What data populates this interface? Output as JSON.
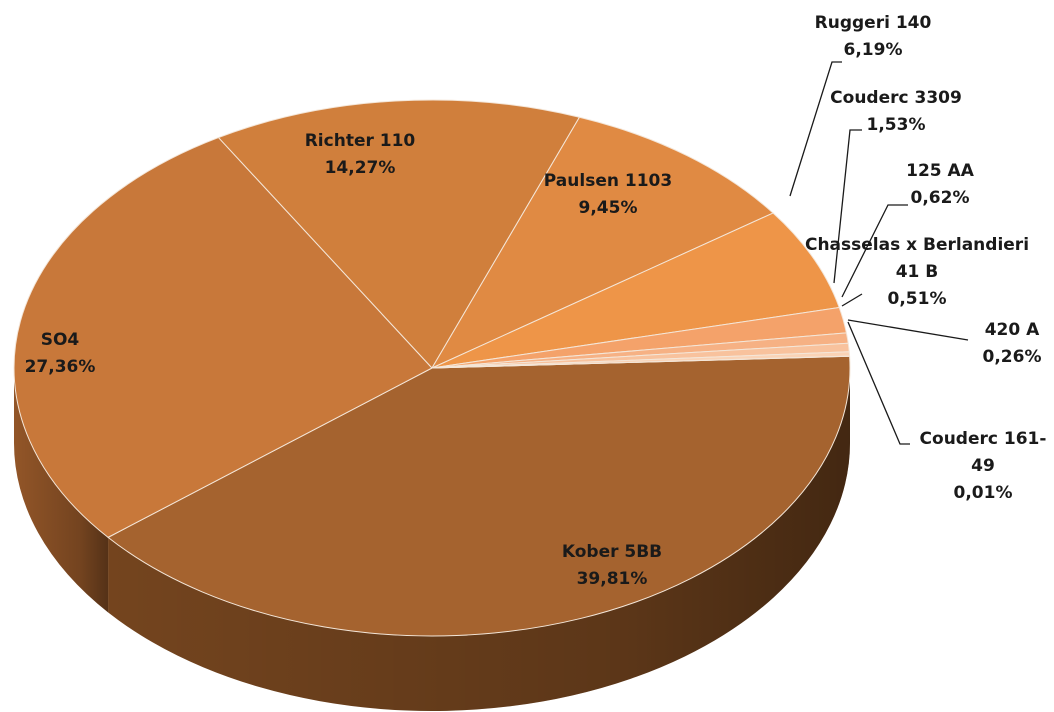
{
  "chart_data": {
    "type": "pie",
    "style": "3d",
    "categories": [
      "Kober 5BB",
      "SO4",
      "Richter 110",
      "Paulsen 1103",
      "Ruggeri 140",
      "Couderc 3309",
      "125 AA",
      "Chasselas x Berlandieri 41 B",
      "420 A",
      "Couderc 161-49"
    ],
    "values": [
      39.81,
      27.36,
      14.27,
      9.45,
      6.19,
      1.53,
      0.62,
      0.51,
      0.26,
      0.01
    ],
    "labels": [
      {
        "lines": [
          "Kober 5BB"
        ],
        "value": "39,81%"
      },
      {
        "lines": [
          "SO4"
        ],
        "value": "27,36%"
      },
      {
        "lines": [
          "Richter 110"
        ],
        "value": "14,27%"
      },
      {
        "lines": [
          "Paulsen 1103"
        ],
        "value": "9,45%"
      },
      {
        "lines": [
          "Ruggeri 140"
        ],
        "value": "6,19%"
      },
      {
        "lines": [
          "Couderc 3309"
        ],
        "value": "1,53%"
      },
      {
        "lines": [
          "125 AA"
        ],
        "value": "0,62%"
      },
      {
        "lines": [
          "Chasselas x Berlandieri",
          "41 B"
        ],
        "value": "0,51%"
      },
      {
        "lines": [
          "420 A"
        ],
        "value": "0,26%"
      },
      {
        "lines": [
          "Couderc 161-",
          "49"
        ],
        "value": "0,01%"
      }
    ],
    "colors": [
      "#a5632f",
      "#c8783a",
      "#d07f3c",
      "#e08a43",
      "#ee9548",
      "#f4a26a",
      "#f6b184",
      "#f8c29d",
      "#fad3b6",
      "#fce3cf"
    ],
    "side_colors": [
      "#7a4820",
      "#9a5a2a",
      "#a0602c",
      "#b06a32",
      "#bd7438",
      "#c6835a",
      "#cc926c",
      "#d0a080",
      "#d6b094",
      "#dcc0a8"
    ],
    "legend": "none"
  }
}
